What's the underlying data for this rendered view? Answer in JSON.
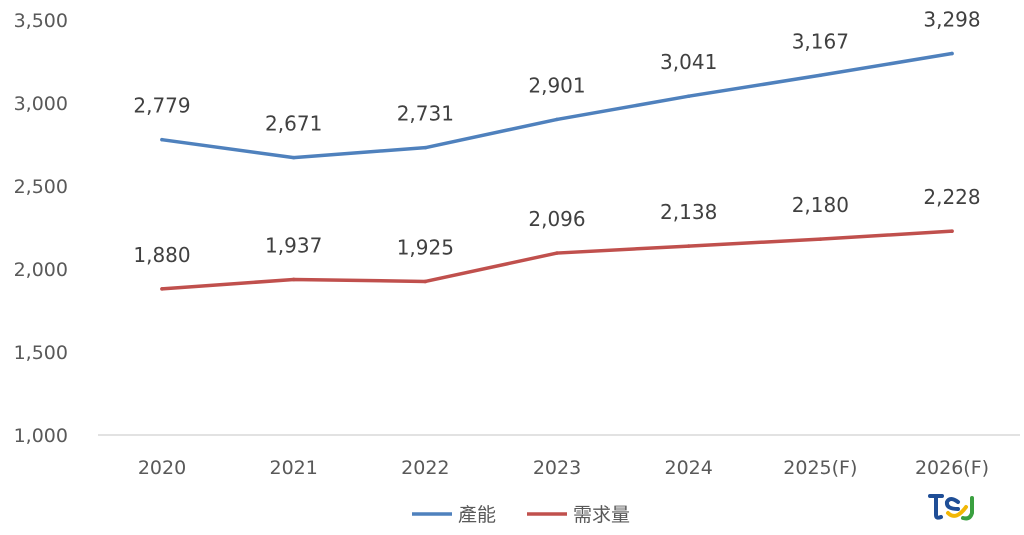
{
  "chart_data": {
    "type": "line",
    "title": "",
    "xlabel": "",
    "ylabel": "",
    "categories": [
      "2020",
      "2021",
      "2022",
      "2023",
      "2024",
      "2025(F)",
      "2026(F)"
    ],
    "ylim": [
      1000,
      3500
    ],
    "yticks": [
      "1,000",
      "1,500",
      "2,000",
      "2,500",
      "3,000",
      "3,500"
    ],
    "grid": false,
    "legend_position": "bottom",
    "series": [
      {
        "name": "產能",
        "color": "#4f81bd",
        "values": [
          2779,
          2671,
          2731,
          2901,
          3041,
          3167,
          3298
        ],
        "labels": [
          "2,779",
          "2,671",
          "2,731",
          "2,901",
          "3,041",
          "3,167",
          "3,298"
        ]
      },
      {
        "name": "需求量",
        "color": "#c0504d",
        "values": [
          1880,
          1937,
          1925,
          2096,
          2138,
          2180,
          2228
        ],
        "labels": [
          "1,880",
          "1,937",
          "1,925",
          "2,096",
          "2,138",
          "2,180",
          "2,228"
        ]
      }
    ]
  },
  "logo": {
    "icon": "tej-logo-icon",
    "text": "tej"
  }
}
